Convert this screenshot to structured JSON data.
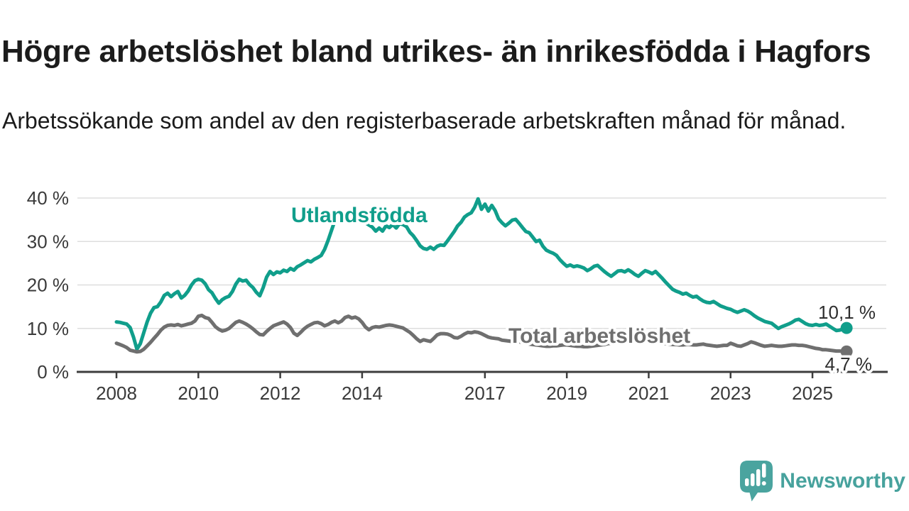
{
  "header": {
    "title": "Högre arbetslöshet bland utrikes- än inrikesfödda i Hagfors",
    "subtitle": "Arbetssökande som andel av den registerbaserade arbetskraften månad för månad."
  },
  "branding": {
    "logo_text": "Newsworthy",
    "logo_icon": "bar-chart-speech-bubble-icon",
    "logo_color": "#47a29d"
  },
  "colors": {
    "foreign_born_line": "#109e8b",
    "total_line": "#6f6f6f",
    "axis": "#3d3d3d",
    "tick_text": "#3a3a3a",
    "grid": "#dedede",
    "annotation_text": "#2e2e2e"
  },
  "chart_data": {
    "type": "line",
    "unit": "%",
    "frequency": "monthly",
    "x_start": "2008-01",
    "x_end": "2025-11",
    "grid": true,
    "ylim": [
      0,
      42
    ],
    "yticks": [
      {
        "value": 0,
        "label": "0 %"
      },
      {
        "value": 10,
        "label": "10 %"
      },
      {
        "value": 20,
        "label": "20 %"
      },
      {
        "value": 30,
        "label": "30 %"
      },
      {
        "value": 40,
        "label": "40 %"
      }
    ],
    "xticks": [
      {
        "year": 2008,
        "label": "2008"
      },
      {
        "year": 2010,
        "label": "2010"
      },
      {
        "year": 2012,
        "label": "2012"
      },
      {
        "year": 2014,
        "label": "2014"
      },
      {
        "year": 2017,
        "label": "2017"
      },
      {
        "year": 2019,
        "label": "2019"
      },
      {
        "year": 2021,
        "label": "2021"
      },
      {
        "year": 2023,
        "label": "2023"
      },
      {
        "year": 2025,
        "label": "2025"
      }
    ],
    "series": [
      {
        "name": "Utlandsfödda",
        "color": "#109e8b",
        "end_value": 10.1,
        "end_label": "10,1 %",
        "values": [
          11.5,
          11.4,
          11.2,
          11.0,
          10.2,
          8.0,
          5.2,
          6.5,
          9.0,
          11.5,
          13.5,
          14.8,
          15.0,
          16.1,
          17.6,
          18.1,
          17.3,
          18.0,
          18.5,
          17.0,
          17.6,
          18.6,
          20.0,
          21.0,
          21.3,
          21.1,
          20.3,
          18.9,
          18.2,
          16.9,
          15.8,
          16.6,
          17.1,
          17.4,
          18.5,
          20.2,
          21.3,
          20.9,
          21.1,
          20.1,
          19.4,
          18.3,
          17.5,
          19.4,
          21.8,
          23.1,
          22.4,
          23.0,
          22.8,
          23.4,
          23.1,
          23.8,
          23.4,
          24.2,
          24.6,
          25.1,
          25.6,
          25.3,
          25.9,
          26.3,
          26.8,
          28.2,
          30.2,
          32.5,
          34.8,
          36.2,
          34.2,
          35.0,
          35.6,
          34.9,
          35.3,
          34.6,
          34.9,
          34.3,
          33.8,
          33.3,
          32.4,
          33.1,
          32.4,
          33.6,
          33.2,
          33.9,
          33.1,
          34.1,
          33.9,
          33.4,
          32.1,
          31.3,
          30.2,
          29.0,
          28.4,
          28.2,
          28.7,
          28.2,
          28.9,
          29.2,
          29.1,
          30.1,
          31.2,
          32.3,
          33.6,
          34.4,
          35.6,
          36.2,
          36.6,
          37.9,
          39.8,
          37.4,
          38.6,
          37.0,
          38.3,
          37.1,
          35.2,
          34.3,
          33.6,
          34.2,
          34.9,
          35.1,
          34.2,
          33.2,
          32.3,
          32.0,
          31.0,
          30.0,
          30.3,
          28.9,
          28.0,
          27.6,
          27.3,
          26.8,
          25.8,
          25.0,
          24.3,
          24.6,
          24.2,
          24.4,
          24.2,
          23.9,
          23.3,
          23.7,
          24.3,
          24.5,
          23.8,
          23.1,
          22.5,
          22.0,
          22.6,
          23.2,
          23.3,
          23.0,
          23.5,
          23.0,
          22.4,
          22.0,
          22.7,
          23.3,
          23.0,
          22.6,
          23.1,
          22.3,
          21.5,
          20.6,
          19.8,
          19.0,
          18.6,
          18.3,
          17.9,
          18.1,
          17.6,
          17.2,
          17.4,
          16.8,
          16.3,
          16.0,
          15.9,
          16.2,
          15.7,
          15.2,
          14.9,
          14.6,
          14.4,
          14.0,
          13.7,
          14.0,
          14.3,
          14.0,
          13.5,
          12.9,
          12.4,
          12.0,
          11.6,
          11.4,
          11.2,
          10.6,
          10.0,
          10.4,
          10.7,
          11.0,
          11.4,
          11.9,
          12.1,
          11.6,
          11.1,
          10.8,
          10.7,
          10.9,
          10.7,
          10.8,
          11.0,
          10.5,
          10.0,
          9.5,
          9.6,
          9.9,
          10.1
        ]
      },
      {
        "name": "Total arbetslöshet",
        "color": "#6f6f6f",
        "end_value": 4.7,
        "end_label": "4,7 %",
        "values": [
          6.6,
          6.3,
          6.0,
          5.6,
          5.0,
          4.8,
          4.6,
          4.7,
          5.2,
          6.0,
          6.8,
          7.7,
          8.6,
          9.6,
          10.3,
          10.7,
          10.8,
          10.7,
          10.9,
          10.6,
          10.8,
          11.0,
          11.2,
          11.7,
          12.8,
          13.0,
          12.5,
          12.3,
          11.4,
          10.4,
          9.8,
          9.4,
          9.6,
          10.0,
          10.7,
          11.4,
          11.7,
          11.4,
          11.0,
          10.5,
          9.9,
          9.2,
          8.6,
          8.5,
          9.3,
          10.0,
          10.6,
          10.9,
          11.2,
          11.5,
          11.0,
          10.2,
          8.9,
          8.4,
          9.1,
          9.9,
          10.5,
          10.9,
          11.3,
          11.4,
          11.1,
          10.6,
          10.9,
          11.4,
          11.7,
          11.3,
          11.7,
          12.5,
          12.8,
          12.4,
          12.6,
          12.2,
          11.4,
          10.3,
          9.7,
          10.2,
          10.4,
          10.3,
          10.5,
          10.7,
          10.8,
          10.7,
          10.5,
          10.3,
          10.1,
          9.6,
          9.1,
          8.4,
          7.6,
          7.0,
          7.4,
          7.2,
          7.0,
          7.7,
          8.5,
          8.8,
          8.8,
          8.7,
          8.4,
          7.9,
          7.8,
          8.2,
          8.7,
          9.1,
          9.0,
          9.2,
          9.1,
          8.8,
          8.4,
          8.0,
          7.8,
          7.7,
          7.6,
          7.3,
          7.2,
          7.1,
          7.0,
          7.0,
          6.9,
          6.8,
          6.6,
          6.4,
          6.3,
          6.2,
          6.1,
          6.0,
          5.9,
          5.9,
          6.0,
          6.0,
          6.1,
          6.2,
          6.2,
          6.1,
          6.0,
          5.9,
          5.9,
          5.8,
          5.8,
          5.9,
          6.0,
          6.1,
          6.2,
          6.3,
          6.5,
          6.6,
          7.0,
          7.6,
          7.9,
          8.0,
          7.9,
          7.8,
          7.6,
          7.4,
          7.3,
          7.2,
          7.1,
          7.0,
          6.9,
          6.8,
          6.7,
          6.5,
          6.4,
          6.3,
          6.3,
          6.2,
          6.2,
          6.3,
          6.3,
          6.2,
          6.2,
          6.3,
          6.4,
          6.2,
          6.1,
          6.0,
          5.9,
          6.0,
          6.1,
          6.1,
          6.6,
          6.3,
          6.0,
          5.9,
          6.2,
          6.5,
          6.9,
          6.7,
          6.4,
          6.1,
          5.9,
          6.0,
          6.1,
          6.0,
          5.9,
          5.9,
          6.0,
          6.1,
          6.2,
          6.2,
          6.1,
          6.1,
          6.0,
          5.8,
          5.6,
          5.4,
          5.3,
          5.1,
          5.1,
          5.0,
          4.9,
          4.8,
          4.8,
          4.7,
          4.7
        ]
      }
    ]
  }
}
